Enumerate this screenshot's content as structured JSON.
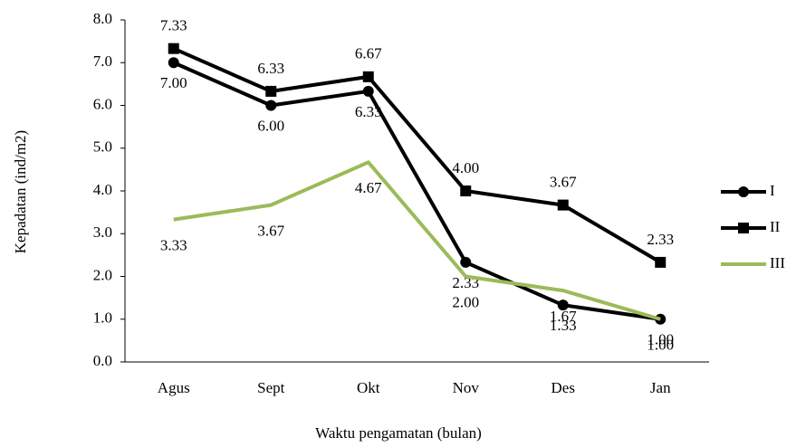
{
  "chart_data": {
    "type": "line",
    "x_label": "Waktu pengamatan (bulan)",
    "y_label": "Kepadatan (ind/m2)",
    "categories": [
      "Agus",
      "Sept",
      "Okt",
      "Nov",
      "Des",
      "Jan"
    ],
    "series": [
      {
        "name": "I",
        "color": "#000000",
        "marker": "circle",
        "values": [
          7,
          6,
          6.33,
          2.33,
          1.33,
          1
        ],
        "value_labels": [
          "7.00",
          "6.00",
          "6.33",
          "2.33",
          "1.33",
          "1.00"
        ]
      },
      {
        "name": "II",
        "color": "#000000",
        "marker": "square",
        "values": [
          7.33,
          6.33,
          6.67,
          4,
          3.67,
          2.33
        ],
        "value_labels": [
          "7.33",
          "6.33",
          "6.67",
          "4.00",
          "3.67",
          "2.33"
        ]
      },
      {
        "name": "III",
        "color": "#9bbb59",
        "marker": "none",
        "values": [
          3.33,
          3.67,
          4.67,
          2,
          1.67,
          1
        ],
        "value_labels": [
          "3.33",
          "3.67",
          "4.67",
          "2.00",
          "1.67",
          "1.00"
        ]
      }
    ],
    "ylim": [
      0,
      8
    ],
    "yticks": [
      {
        "value": 0,
        "label": "0.0"
      },
      {
        "value": 1,
        "label": "1.0"
      },
      {
        "value": 2,
        "label": "2.0"
      },
      {
        "value": 3,
        "label": "3.0"
      },
      {
        "value": 4,
        "label": "4.0"
      },
      {
        "value": 5,
        "label": "5.0"
      },
      {
        "value": 6,
        "label": "6.0"
      },
      {
        "value": 7,
        "label": "7.0"
      },
      {
        "value": 8,
        "label": "8.0"
      }
    ],
    "legend": "right"
  }
}
